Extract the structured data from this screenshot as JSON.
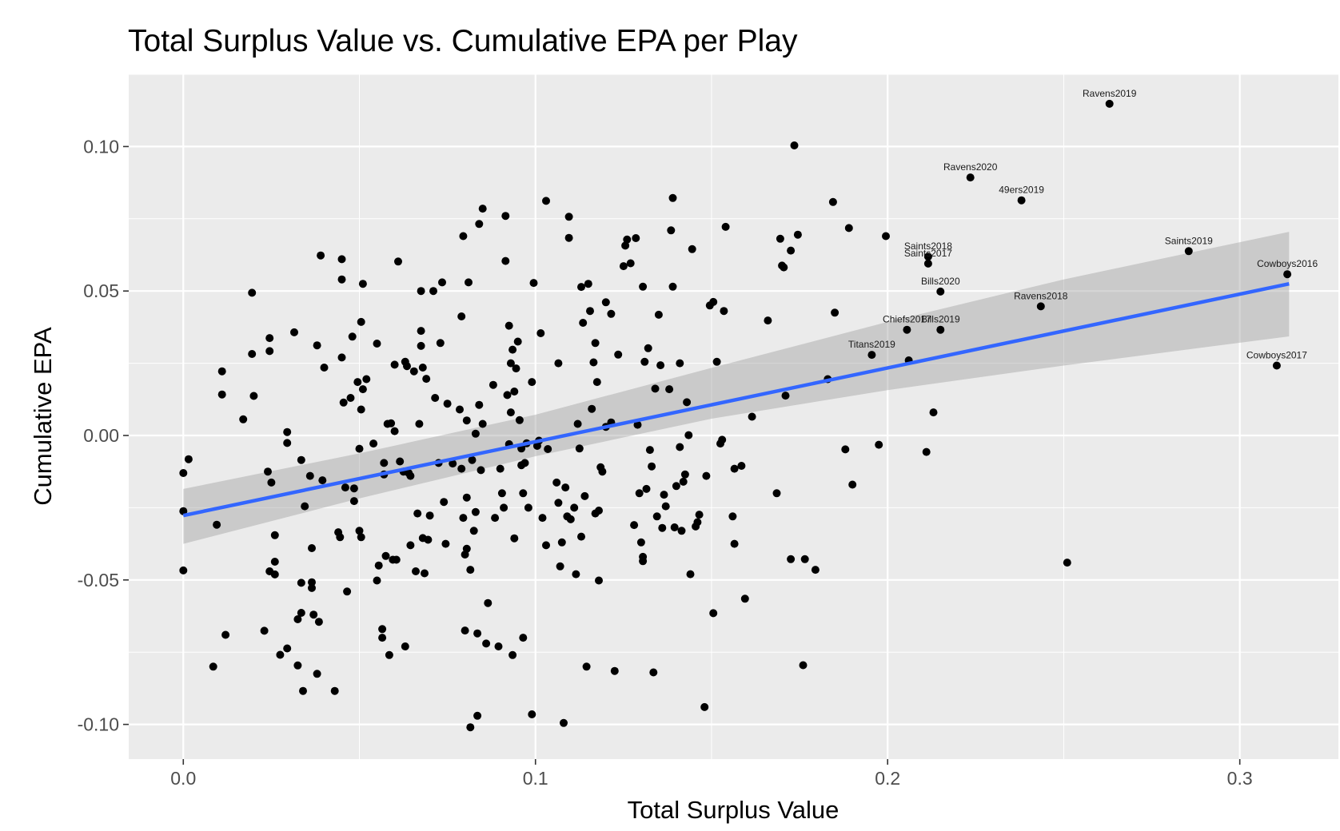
{
  "chart_data": {
    "type": "scatter",
    "title": "Total Surplus Value vs. Cumulative EPA per Play",
    "xlabel": "Total Surplus Value",
    "ylabel": "Cumulative EPA",
    "xlim": [
      -0.0155,
      0.328
    ],
    "ylim": [
      -0.112,
      0.125
    ],
    "x_ticks": [
      0.0,
      0.1,
      0.2,
      0.3
    ],
    "x_tick_labels": [
      "0.0",
      "0.1",
      "0.2",
      "0.3"
    ],
    "y_ticks": [
      -0.1,
      -0.05,
      0.0,
      0.05,
      0.1
    ],
    "y_tick_labels": [
      "-0.10",
      "-0.05",
      "0.00",
      "0.05",
      "0.10"
    ],
    "grid": true,
    "legend": "none",
    "colors": {
      "panel": "#ebebeb",
      "grid": "#ffffff",
      "point": "#000000",
      "trend_line": "#3366ff",
      "confidence_band": "#999999"
    },
    "trend_line": {
      "x": [
        0.0,
        0.314
      ],
      "y": [
        -0.0277,
        0.0525
      ]
    },
    "confidence_band": {
      "x": [
        0.0,
        0.05,
        0.1,
        0.15,
        0.2,
        0.25,
        0.314
      ],
      "lower": [
        -0.0375,
        -0.0218,
        -0.0072,
        0.0058,
        0.0157,
        0.0242,
        0.0343
      ],
      "upper": [
        -0.0185,
        -0.0062,
        0.0072,
        0.0234,
        0.0393,
        0.054,
        0.0705
      ]
    },
    "labeled_points": [
      {
        "label": "Ravens2019",
        "x": 0.263,
        "y": 0.1148
      },
      {
        "label": "Ravens2020",
        "x": 0.2235,
        "y": 0.0893
      },
      {
        "label": "49ers2019",
        "x": 0.238,
        "y": 0.0814
      },
      {
        "label": "Saints2019",
        "x": 0.2855,
        "y": 0.0638
      },
      {
        "label": "Cowboys2016",
        "x": 0.3135,
        "y": 0.0558
      },
      {
        "label": "Saints2018",
        "x": 0.2115,
        "y": 0.0619
      },
      {
        "label": "Saints2017",
        "x": 0.2115,
        "y": 0.0595
      },
      {
        "label": "Bills2020",
        "x": 0.215,
        "y": 0.0498
      },
      {
        "label": "Ravens2018",
        "x": 0.2435,
        "y": 0.0447
      },
      {
        "label": "Chiefs2017",
        "x": 0.2055,
        "y": 0.0366
      },
      {
        "label": "Bills2019",
        "x": 0.215,
        "y": 0.0366
      },
      {
        "label": "Titans2019",
        "x": 0.1955,
        "y": 0.0279
      },
      {
        "label": "Cowboys2017",
        "x": 0.3105,
        "y": 0.0242
      }
    ],
    "points": [
      [
        0.0,
        -0.013
      ],
      [
        0.0015,
        -0.0082
      ],
      [
        0.0,
        -0.0262
      ],
      [
        0.0,
        -0.0467
      ],
      [
        0.0085,
        -0.08
      ],
      [
        0.0095,
        -0.0309
      ],
      [
        0.011,
        0.0222
      ],
      [
        0.011,
        0.0142
      ],
      [
        0.012,
        -0.069
      ],
      [
        0.017,
        0.0056
      ],
      [
        0.0195,
        0.0494
      ],
      [
        0.0195,
        0.0282
      ],
      [
        0.02,
        0.0137
      ],
      [
        0.023,
        -0.0676
      ],
      [
        0.024,
        -0.0125
      ],
      [
        0.0245,
        0.0337
      ],
      [
        0.0245,
        0.0292
      ],
      [
        0.0245,
        -0.047
      ],
      [
        0.025,
        -0.0163
      ],
      [
        0.026,
        -0.0345
      ],
      [
        0.026,
        -0.0437
      ],
      [
        0.026,
        -0.0481
      ],
      [
        0.0275,
        -0.0759
      ],
      [
        0.0295,
        -0.0026
      ],
      [
        0.0295,
        0.0012
      ],
      [
        0.0295,
        -0.0737
      ],
      [
        0.0315,
        0.0357
      ],
      [
        0.0325,
        -0.0636
      ],
      [
        0.0325,
        -0.0796
      ],
      [
        0.0335,
        -0.0085
      ],
      [
        0.0335,
        -0.051
      ],
      [
        0.0335,
        -0.0614
      ],
      [
        0.034,
        -0.0884
      ],
      [
        0.0345,
        -0.0245
      ],
      [
        0.036,
        -0.014
      ],
      [
        0.0365,
        -0.039
      ],
      [
        0.0365,
        -0.0508
      ],
      [
        0.0365,
        -0.0528
      ],
      [
        0.037,
        -0.062
      ],
      [
        0.038,
        0.0312
      ],
      [
        0.038,
        -0.0825
      ],
      [
        0.0385,
        -0.0645
      ],
      [
        0.039,
        0.0623
      ],
      [
        0.0395,
        -0.0155
      ],
      [
        0.04,
        0.0235
      ],
      [
        0.044,
        -0.0335
      ],
      [
        0.0445,
        -0.0352
      ],
      [
        0.043,
        -0.0884
      ],
      [
        0.045,
        0.061
      ],
      [
        0.045,
        0.054
      ],
      [
        0.045,
        0.027
      ],
      [
        0.0455,
        0.0114
      ],
      [
        0.046,
        -0.018
      ],
      [
        0.0465,
        -0.054
      ],
      [
        0.0475,
        0.013
      ],
      [
        0.048,
        0.0342
      ],
      [
        0.0485,
        -0.0183
      ],
      [
        0.0485,
        -0.0227
      ],
      [
        0.0495,
        0.0185
      ],
      [
        0.05,
        -0.0046
      ],
      [
        0.05,
        -0.033
      ],
      [
        0.0505,
        -0.0352
      ],
      [
        0.0505,
        0.0393
      ],
      [
        0.0505,
        0.009
      ],
      [
        0.051,
        0.016
      ],
      [
        0.051,
        0.0525
      ],
      [
        0.052,
        0.0195
      ],
      [
        0.054,
        -0.0028
      ],
      [
        0.055,
        -0.0502
      ],
      [
        0.055,
        0.0318
      ],
      [
        0.0555,
        -0.045
      ],
      [
        0.0565,
        -0.067
      ],
      [
        0.0565,
        -0.07
      ],
      [
        0.057,
        -0.0095
      ],
      [
        0.057,
        -0.0135
      ],
      [
        0.0575,
        -0.0417
      ],
      [
        0.058,
        0.004
      ],
      [
        0.0585,
        -0.076
      ],
      [
        0.059,
        0.0042
      ],
      [
        0.0595,
        -0.043
      ],
      [
        0.06,
        0.0015
      ],
      [
        0.06,
        0.0245
      ],
      [
        0.0605,
        -0.043
      ],
      [
        0.061,
        0.0602
      ],
      [
        0.0615,
        -0.009
      ],
      [
        0.0625,
        -0.0125
      ],
      [
        0.063,
        0.0255
      ],
      [
        0.063,
        -0.073
      ],
      [
        0.0635,
        0.024
      ],
      [
        0.064,
        -0.013
      ],
      [
        0.0645,
        -0.038
      ],
      [
        0.0645,
        -0.014
      ],
      [
        0.0655,
        0.0222
      ],
      [
        0.066,
        -0.047
      ],
      [
        0.0665,
        -0.027
      ],
      [
        0.067,
        0.004
      ],
      [
        0.0675,
        0.05
      ],
      [
        0.0675,
        0.0362
      ],
      [
        0.0675,
        0.031
      ],
      [
        0.068,
        0.0235
      ],
      [
        0.068,
        -0.0355
      ],
      [
        0.0685,
        -0.0477
      ],
      [
        0.069,
        0.0196
      ],
      [
        0.0695,
        -0.0361
      ],
      [
        0.07,
        -0.0277
      ],
      [
        0.071,
        0.05
      ],
      [
        0.0715,
        0.013
      ],
      [
        0.0725,
        -0.0095
      ],
      [
        0.073,
        0.032
      ],
      [
        0.0735,
        0.053
      ],
      [
        0.074,
        -0.023
      ],
      [
        0.0745,
        -0.0375
      ],
      [
        0.075,
        0.011
      ],
      [
        0.0765,
        -0.0097
      ],
      [
        0.0785,
        0.009
      ],
      [
        0.079,
        0.0412
      ],
      [
        0.079,
        -0.0115
      ],
      [
        0.0795,
        -0.0285
      ],
      [
        0.0795,
        0.069
      ],
      [
        0.08,
        -0.0675
      ],
      [
        0.08,
        -0.0412
      ],
      [
        0.0805,
        -0.0392
      ],
      [
        0.0805,
        0.0052
      ],
      [
        0.0805,
        -0.0215
      ],
      [
        0.081,
        0.053
      ],
      [
        0.0815,
        -0.0465
      ],
      [
        0.0815,
        -0.101
      ],
      [
        0.082,
        -0.0085
      ],
      [
        0.0825,
        -0.033
      ],
      [
        0.083,
        -0.0265
      ],
      [
        0.083,
        0.0006
      ],
      [
        0.0835,
        -0.0685
      ],
      [
        0.0835,
        -0.097
      ],
      [
        0.084,
        0.0106
      ],
      [
        0.084,
        0.0732
      ],
      [
        0.0845,
        -0.012
      ],
      [
        0.085,
        0.004
      ],
      [
        0.085,
        0.0785
      ],
      [
        0.086,
        -0.072
      ],
      [
        0.0865,
        -0.058
      ],
      [
        0.088,
        0.0175
      ],
      [
        0.0885,
        -0.0285
      ],
      [
        0.0895,
        -0.073
      ],
      [
        0.09,
        -0.0115
      ],
      [
        0.0905,
        -0.02
      ],
      [
        0.091,
        -0.025
      ],
      [
        0.0915,
        0.076
      ],
      [
        0.0915,
        0.0604
      ],
      [
        0.092,
        0.014
      ],
      [
        0.0925,
        0.038
      ],
      [
        0.0925,
        -0.003
      ],
      [
        0.093,
        0.025
      ],
      [
        0.093,
        0.008
      ],
      [
        0.0935,
        0.0297
      ],
      [
        0.0935,
        -0.076
      ],
      [
        0.094,
        0.0152
      ],
      [
        0.094,
        -0.0356
      ],
      [
        0.0945,
        0.0232
      ],
      [
        0.095,
        0.0325
      ],
      [
        0.0955,
        0.0053
      ],
      [
        0.096,
        -0.0103
      ],
      [
        0.096,
        -0.0045
      ],
      [
        0.0965,
        -0.02
      ],
      [
        0.0965,
        -0.07
      ],
      [
        0.097,
        -0.0095
      ],
      [
        0.0975,
        -0.0027
      ],
      [
        0.098,
        -0.025
      ],
      [
        0.099,
        0.0185
      ],
      [
        0.099,
        -0.0965
      ],
      [
        0.0995,
        0.0528
      ],
      [
        0.1005,
        -0.0036
      ],
      [
        0.101,
        -0.0018
      ],
      [
        0.1015,
        0.0354
      ],
      [
        0.102,
        -0.0285
      ],
      [
        0.103,
        -0.038
      ],
      [
        0.103,
        0.0812
      ],
      [
        0.1035,
        -0.0047
      ],
      [
        0.106,
        -0.0163
      ],
      [
        0.1065,
        -0.0233
      ],
      [
        0.1065,
        0.025
      ],
      [
        0.107,
        -0.0453
      ],
      [
        0.1075,
        -0.037
      ],
      [
        0.108,
        -0.0995
      ],
      [
        0.1085,
        -0.018
      ],
      [
        0.109,
        -0.028
      ],
      [
        0.1095,
        0.0757
      ],
      [
        0.1095,
        0.0684
      ],
      [
        0.11,
        -0.029
      ],
      [
        0.111,
        -0.025
      ],
      [
        0.1115,
        -0.048
      ],
      [
        0.112,
        0.004
      ],
      [
        0.1125,
        -0.0045
      ],
      [
        0.113,
        -0.035
      ],
      [
        0.113,
        0.0514
      ],
      [
        0.1135,
        0.039
      ],
      [
        0.114,
        -0.021
      ],
      [
        0.1145,
        -0.08
      ],
      [
        0.115,
        0.0525
      ],
      [
        0.1155,
        0.0431
      ],
      [
        0.116,
        0.0092
      ],
      [
        0.1165,
        0.0253
      ],
      [
        0.117,
        -0.027
      ],
      [
        0.117,
        0.032
      ],
      [
        0.1175,
        0.0185
      ],
      [
        0.118,
        -0.0502
      ],
      [
        0.118,
        -0.026
      ],
      [
        0.1185,
        -0.011
      ],
      [
        0.119,
        -0.0125
      ],
      [
        0.12,
        0.0461
      ],
      [
        0.12,
        0.003
      ],
      [
        0.1215,
        0.0045
      ],
      [
        0.1215,
        0.0421
      ],
      [
        0.1225,
        -0.0815
      ],
      [
        0.1235,
        0.028
      ],
      [
        0.125,
        0.0586
      ],
      [
        0.1255,
        0.0657
      ],
      [
        0.126,
        0.0678
      ],
      [
        0.127,
        0.0596
      ],
      [
        0.128,
        -0.031
      ],
      [
        0.1285,
        0.0683
      ],
      [
        0.129,
        0.0037
      ],
      [
        0.1295,
        -0.02
      ],
      [
        0.13,
        -0.037
      ],
      [
        0.1305,
        0.0515
      ],
      [
        0.1305,
        -0.042
      ],
      [
        0.1305,
        -0.0435
      ],
      [
        0.131,
        0.0255
      ],
      [
        0.1315,
        -0.0185
      ],
      [
        0.132,
        0.0302
      ],
      [
        0.1325,
        -0.005
      ],
      [
        0.133,
        -0.0107
      ],
      [
        0.1335,
        -0.082
      ],
      [
        0.134,
        0.0162
      ],
      [
        0.1345,
        -0.028
      ],
      [
        0.135,
        0.0418
      ],
      [
        0.1355,
        0.0243
      ],
      [
        0.136,
        -0.032
      ],
      [
        0.1365,
        -0.0205
      ],
      [
        0.137,
        -0.0245
      ],
      [
        0.138,
        0.016
      ],
      [
        0.1385,
        0.071
      ],
      [
        0.139,
        0.0822
      ],
      [
        0.139,
        0.0515
      ],
      [
        0.1395,
        -0.0318
      ],
      [
        0.14,
        -0.0175
      ],
      [
        0.141,
        0.025
      ],
      [
        0.141,
        -0.004
      ],
      [
        0.1415,
        -0.033
      ],
      [
        0.142,
        -0.016
      ],
      [
        0.1425,
        -0.0135
      ],
      [
        0.143,
        0.0115
      ],
      [
        0.1435,
        0.0001
      ],
      [
        0.144,
        -0.048
      ],
      [
        0.1445,
        0.0645
      ],
      [
        0.1455,
        -0.0315
      ],
      [
        0.146,
        -0.03
      ],
      [
        0.1465,
        -0.0274
      ],
      [
        0.148,
        -0.094
      ],
      [
        0.1485,
        -0.014
      ],
      [
        0.1495,
        0.045
      ],
      [
        0.1505,
        0.0462
      ],
      [
        0.1505,
        -0.0615
      ],
      [
        0.1515,
        0.0255
      ],
      [
        0.1525,
        -0.0028
      ],
      [
        0.153,
        -0.0015
      ],
      [
        0.1535,
        0.0431
      ],
      [
        0.154,
        0.0722
      ],
      [
        0.156,
        -0.028
      ],
      [
        0.1565,
        -0.0375
      ],
      [
        0.1565,
        -0.0115
      ],
      [
        0.1585,
        -0.0105
      ],
      [
        0.1595,
        -0.0565
      ],
      [
        0.1615,
        0.0065
      ],
      [
        0.166,
        0.0398
      ],
      [
        0.1685,
        -0.02
      ],
      [
        0.1695,
        0.0681
      ],
      [
        0.17,
        0.0588
      ],
      [
        0.1705,
        0.0582
      ],
      [
        0.171,
        0.0138
      ],
      [
        0.1725,
        0.064
      ],
      [
        0.1725,
        -0.0428
      ],
      [
        0.1735,
        0.1004
      ],
      [
        0.1745,
        0.0695
      ],
      [
        0.176,
        -0.0795
      ],
      [
        0.1765,
        -0.0428
      ],
      [
        0.1795,
        -0.0465
      ],
      [
        0.183,
        0.0195
      ],
      [
        0.1845,
        0.0808
      ],
      [
        0.185,
        0.0425
      ],
      [
        0.188,
        -0.0048
      ],
      [
        0.189,
        0.0718
      ],
      [
        0.19,
        -0.017
      ],
      [
        0.1955,
        0.0279
      ],
      [
        0.1975,
        -0.0032
      ],
      [
        0.1995,
        0.069
      ],
      [
        0.2055,
        0.0366
      ],
      [
        0.206,
        0.026
      ],
      [
        0.211,
        -0.0057
      ],
      [
        0.2115,
        0.0619
      ],
      [
        0.2115,
        0.0595
      ],
      [
        0.213,
        0.008
      ],
      [
        0.215,
        0.0498
      ],
      [
        0.215,
        0.0366
      ],
      [
        0.2235,
        0.0893
      ],
      [
        0.238,
        0.0814
      ],
      [
        0.2435,
        0.0447
      ],
      [
        0.251,
        -0.044
      ],
      [
        0.263,
        0.1148
      ],
      [
        0.2855,
        0.0638
      ],
      [
        0.3105,
        0.0242
      ],
      [
        0.3135,
        0.0558
      ]
    ]
  }
}
